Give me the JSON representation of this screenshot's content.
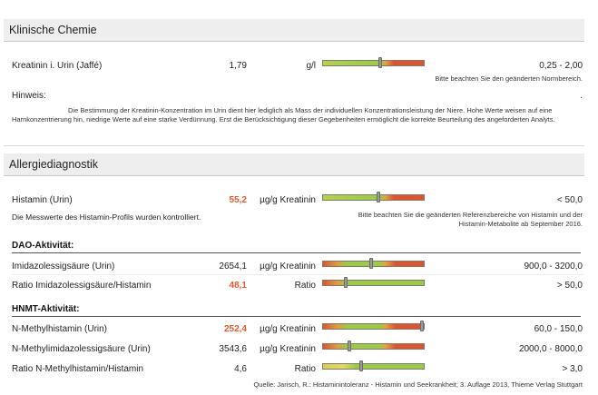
{
  "sections": {
    "klinische_chemie": {
      "title": "Klinische Chemie",
      "kreatinin": {
        "name": "Kreatinin i. Urin (Jaffé)",
        "value": "1,79",
        "unit": "g/l",
        "range": "0,25 - 2,00",
        "note": "Bitte beachten Sie den geänderten Normbereich.",
        "marker_fraction": 0.57
      },
      "hinweis_label": "Hinweis:",
      "hinweis_dot": ".",
      "hinweis_text": "Die Bestimmung der Kreatinin-Konzentration im Urin dient hier lediglich als Mass der individuellen Konzentrationsleistung der Niere. Hohe Werte weisen auf eine Harnkonzentrierung hin, niedrige Werte auf eine starke Verdünnung. Erst die Berücksichtigung dieser Gegebenheiten ermöglicht die korrekte Beurteilung des angeforderten Analyts."
    },
    "allergiediagnostik": {
      "title": "Allergiediagnostik",
      "histamin": {
        "name": "Histamin (Urin)",
        "value": "55,2",
        "unit": "µg/g Kreatinin",
        "range": "< 50,0",
        "note": "Bitte beachten Sie die geänderten Referenzbereiche von Histamin und der Histamin-Metabolite ab September 2016.",
        "marker_fraction": 0.55
      },
      "profile_note": "Die Messwerte des Histamin-Profils wurden kontrolliert.",
      "dao": {
        "title": "DAO-Aktivität:",
        "rows": [
          {
            "name": "Imidazolessigsäure (Urin)",
            "value": "2654,1",
            "high": false,
            "unit": "µg/g Kreatinin",
            "range": "900,0 - 3200,0",
            "marker_fraction": 0.48
          },
          {
            "name": "Ratio Imidazolessigsäure/Histamin",
            "value": "48,1",
            "high": true,
            "unit": "Ratio",
            "range": "> 50,0",
            "marker_fraction": 0.22
          }
        ]
      },
      "hnmt": {
        "title": "HNMT-Aktivität:",
        "rows": [
          {
            "name": "N-Methylhistamin (Urin)",
            "value": "252,4",
            "high": true,
            "unit": "µg/g Kreatinin",
            "range": "60,0 - 150,0",
            "marker_fraction": 0.99
          },
          {
            "name": "N-Methylimidazolessigsäure (Urin)",
            "value": "3543,6",
            "high": false,
            "unit": "µg/g Kreatinin",
            "range": "2000,0 - 8000,0",
            "marker_fraction": 0.26
          },
          {
            "name": "Ratio N-Methylhistamin/Histamin",
            "value": "4,6",
            "high": false,
            "unit": "Ratio",
            "range": "> 3,0",
            "marker_fraction": 0.38
          }
        ]
      },
      "source": "Quelle: Jarisch, R.: Histaminintoleranz - Histamin und Seekrankheit; 3. Auflage 2013, Thieme Verlag Stuttgart"
    }
  }
}
